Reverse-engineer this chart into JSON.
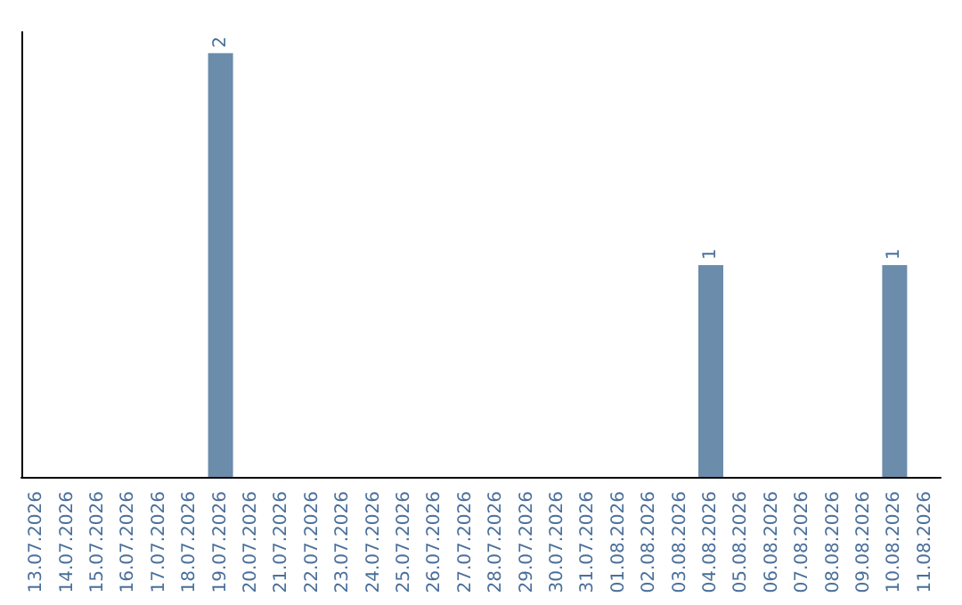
{
  "chart_data": {
    "type": "bar",
    "categories": [
      "13.07.2026",
      "14.07.2026",
      "15.07.2026",
      "16.07.2026",
      "17.07.2026",
      "18.07.2026",
      "19.07.2026",
      "20.07.2026",
      "21.07.2026",
      "22.07.2026",
      "23.07.2026",
      "24.07.2026",
      "25.07.2026",
      "26.07.2026",
      "27.07.2026",
      "28.07.2026",
      "29.07.2026",
      "30.07.2026",
      "31.07.2026",
      "01.08.2026",
      "02.08.2026",
      "03.08.2026",
      "04.08.2026",
      "05.08.2026",
      "06.08.2026",
      "07.08.2026",
      "08.08.2026",
      "09.08.2026",
      "10.08.2026",
      "11.08.2026"
    ],
    "values": [
      0,
      0,
      0,
      0,
      0,
      0,
      2,
      0,
      0,
      0,
      0,
      0,
      0,
      0,
      0,
      0,
      0,
      0,
      0,
      0,
      0,
      0,
      1,
      0,
      0,
      0,
      0,
      0,
      1,
      0
    ],
    "value_labels": [
      null,
      null,
      null,
      null,
      null,
      null,
      "2",
      null,
      null,
      null,
      null,
      null,
      null,
      null,
      null,
      null,
      null,
      null,
      null,
      null,
      null,
      null,
      "1",
      null,
      null,
      null,
      null,
      null,
      "1",
      null
    ],
    "color": "#6b8cab",
    "tick_labels": "x",
    "grid": false
  }
}
